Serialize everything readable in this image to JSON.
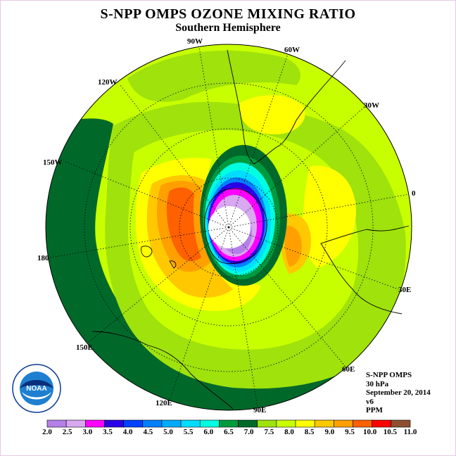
{
  "title": "S-NPP OMPS OZONE MIXING RATIO",
  "subtitle": "Southern Hemisphere",
  "longitude_labels": [
    "90W",
    "60W",
    "30W",
    "0",
    "30E",
    "60E",
    "90E",
    "120E",
    "150E",
    "180",
    "150W",
    "120W"
  ],
  "info": {
    "instrument": "S-NPP OMPS",
    "pressure": "30 hPa",
    "date": "September 20, 2014",
    "version": "v6",
    "units": "PPM"
  },
  "logo": {
    "text": "NOAA",
    "ring_text": "NATIONAL OCEANIC AND ATMOSPHERIC ADMINISTRATION · U.S. DEPARTMENT OF COMMERCE"
  },
  "colorbar": {
    "ticks": [
      "2.0",
      "2.5",
      "3.0",
      "3.5",
      "4.0",
      "4.5",
      "5.0",
      "5.5",
      "6.0",
      "6.5",
      "7.0",
      "7.5",
      "8.0",
      "8.5",
      "9.0",
      "9.5",
      "10.0",
      "10.5",
      "11.0"
    ],
    "colors": [
      "#b57fe8",
      "#d8a8f0",
      "#ff00ff",
      "#2a00e6",
      "#0040ff",
      "#0080ff",
      "#00aaff",
      "#00ddff",
      "#00ffe0",
      "#009a3e",
      "#00692a",
      "#9fe20c",
      "#c8ff00",
      "#ffff00",
      "#ffc800",
      "#ffa000",
      "#ff6000",
      "#ff0000",
      "#8c5030"
    ]
  },
  "map_colors": {
    "background_disk": "#c8ff00",
    "outer_band": "#00692a",
    "mid_band": "#9fe20c",
    "yellow": "#ffff00",
    "orange": "#ffa000",
    "dark_orange": "#ff6000",
    "center_hole": "#ffffff"
  }
}
